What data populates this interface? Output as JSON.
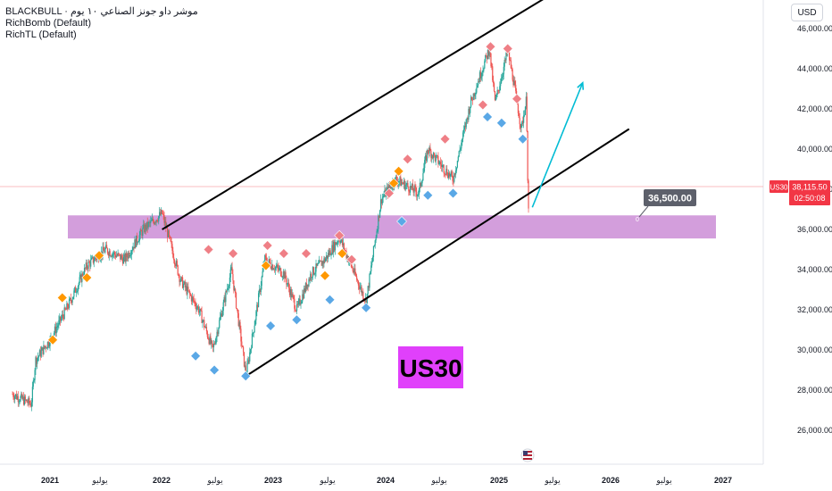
{
  "legend": {
    "line1": "BLACKBULL · موشر داو جونز الصناعي ١٠ يوم",
    "line2": "RichBomb (Default)",
    "line3": "RichTL (Default)"
  },
  "currency": "USD",
  "symbol_tag": "US30",
  "price_tag": "38,115.50",
  "countdown": "02:50:08",
  "level_label": "36,500.00",
  "level_marker": "0",
  "big_label": "US30",
  "colors": {
    "bull": "#26a69a",
    "bear": "#ef5350",
    "zone": "#ce93d8",
    "label_bg": "#e040fb",
    "arrow": "#00bcd4",
    "sell_marker": "#ef7f86",
    "buy_marker": "#5aa8e6",
    "orange_marker": "#ff9800",
    "price_tag_bg": "#f23645"
  },
  "chart_data": {
    "type": "candlestick",
    "instrument": "US30",
    "price_axis": {
      "ticks": [
        "26,000.00",
        "28,000.00",
        "30,000.00",
        "32,000.00",
        "34,000.00",
        "36,000.00",
        "38,000.00",
        "40,000.00",
        "42,000.00",
        "44,000.00",
        "46,000.00"
      ],
      "range": [
        25300,
        46800
      ]
    },
    "time_axis": {
      "ticks": [
        {
          "label": "2021",
          "bold": true
        },
        {
          "label": "يوليو",
          "bold": false
        },
        {
          "label": "2022",
          "bold": true
        },
        {
          "label": "يوليو",
          "bold": false
        },
        {
          "label": "2023",
          "bold": true
        },
        {
          "label": "يوليو",
          "bold": false
        },
        {
          "label": "2024",
          "bold": true
        },
        {
          "label": "يوليو",
          "bold": false
        },
        {
          "label": "2025",
          "bold": true
        },
        {
          "label": "يوليو",
          "bold": false
        },
        {
          "label": "2026",
          "bold": true
        },
        {
          "label": "يوليو",
          "bold": false
        },
        {
          "label": "2027",
          "bold": true
        }
      ]
    },
    "price_path": [
      [
        "2020-09-01",
        27800
      ],
      [
        "2020-11-01",
        27300
      ],
      [
        "2020-11-15",
        29500
      ],
      [
        "2021-01-01",
        30500
      ],
      [
        "2021-03-01",
        32200
      ],
      [
        "2021-05-01",
        34200
      ],
      [
        "2021-07-01",
        35000
      ],
      [
        "2021-09-01",
        34500
      ],
      [
        "2021-11-01",
        36000
      ],
      [
        "2022-01-01",
        36800
      ],
      [
        "2022-03-01",
        33500
      ],
      [
        "2022-05-01",
        32000
      ],
      [
        "2022-06-15",
        30000
      ],
      [
        "2022-08-15",
        34000
      ],
      [
        "2022-10-01",
        28700
      ],
      [
        "2022-12-01",
        34500
      ],
      [
        "2023-02-01",
        33800
      ],
      [
        "2023-03-15",
        32000
      ],
      [
        "2023-05-01",
        33800
      ],
      [
        "2023-06-15",
        34500
      ],
      [
        "2023-08-01",
        35600
      ],
      [
        "2023-10-27",
        32400
      ],
      [
        "2023-12-15",
        37500
      ],
      [
        "2024-02-01",
        38500
      ],
      [
        "2024-04-15",
        37800
      ],
      [
        "2024-05-15",
        40000
      ],
      [
        "2024-08-05",
        38500
      ],
      [
        "2024-10-01",
        42300
      ],
      [
        "2024-12-01",
        45000
      ],
      [
        "2024-12-20",
        42300
      ],
      [
        "2025-01-30",
        44900
      ],
      [
        "2025-02-20",
        43200
      ],
      [
        "2025-03-15",
        41000
      ],
      [
        "2025-04-01",
        42500
      ],
      [
        "2025-04-07",
        36700
      ],
      [
        "2025-04-10",
        38100
      ]
    ],
    "support_zone": [
      35550,
      36700
    ],
    "horizontal_level": 36500,
    "channel_upper": [
      [
        "2022-01-01",
        36000
      ],
      [
        "2025-07-01",
        47800
      ]
    ],
    "channel_lower": [
      [
        "2022-10-01",
        28700
      ],
      [
        "2026-03-01",
        41000
      ]
    ],
    "projection_arrow": [
      [
        "2025-04-20",
        37100
      ],
      [
        "2025-10-01",
        43300
      ]
    ],
    "markers": {
      "sell": [
        [
          "2022-06-01",
          35000
        ],
        [
          "2022-08-20",
          34800
        ],
        [
          "2022-12-10",
          35200
        ],
        [
          "2023-02-01",
          34800
        ],
        [
          "2023-04-15",
          34800
        ],
        [
          "2023-08-01",
          35700
        ],
        [
          "2023-09-10",
          34500
        ],
        [
          "2024-01-10",
          37800
        ],
        [
          "2024-03-10",
          39500
        ],
        [
          "2024-07-10",
          40500
        ],
        [
          "2024-11-10",
          42200
        ],
        [
          "2024-12-05",
          45100
        ],
        [
          "2025-01-30",
          45000
        ],
        [
          "2025-03-01",
          42500
        ]
      ],
      "buy": [
        [
          "2022-04-20",
          29700
        ],
        [
          "2022-06-20",
          29000
        ],
        [
          "2022-09-30",
          28700
        ],
        [
          "2022-12-20",
          31200
        ],
        [
          "2023-03-15",
          31500
        ],
        [
          "2023-07-01",
          32500
        ],
        [
          "2023-10-27",
          32100
        ],
        [
          "2024-02-20",
          36400
        ],
        [
          "2024-05-15",
          37700
        ],
        [
          "2024-08-05",
          37800
        ],
        [
          "2024-11-25",
          41600
        ],
        [
          "2025-01-10",
          41300
        ],
        [
          "2025-03-20",
          40500
        ]
      ],
      "orange": [
        [
          "2021-01-10",
          30500
        ],
        [
          "2021-02-10",
          32600
        ],
        [
          "2021-05-01",
          33600
        ],
        [
          "2021-06-10",
          34700
        ],
        [
          "2022-12-05",
          34200
        ],
        [
          "2023-06-15",
          33700
        ],
        [
          "2023-08-10",
          34800
        ],
        [
          "2024-01-25",
          38300
        ],
        [
          "2024-02-10",
          38900
        ]
      ]
    }
  }
}
